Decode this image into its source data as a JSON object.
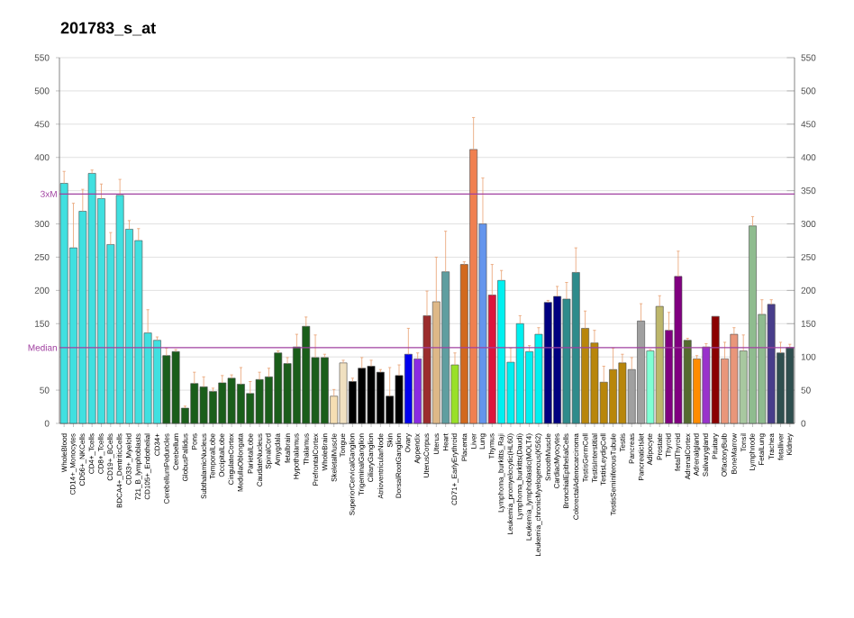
{
  "chart_data": {
    "type": "bar",
    "title": "201783_s_at",
    "categories": [
      "WholeBlood",
      "CD14+_Monocytes",
      "CD56+_NKCells",
      "CD4+_Tcells",
      "CD8+_Tcells",
      "CD19+_BCells",
      "BDCA4+_DentriticCells",
      "CD33+_Myeloid",
      "721_B_lymphoblasts",
      "CD105+_Endothelial",
      "CD34+",
      "CerebellumPeduncles",
      "Cerebellum",
      "GlobusPallidus",
      "Pons",
      "SubthalamicNucleus",
      "TemporalLobe",
      "OccipitalLobe",
      "CingulateCortex",
      "MedullaOblongata",
      "ParietalLobe",
      "CaudateNucleus",
      "SpinalCord",
      "Amygdala",
      "fetalbrain",
      "Hypothalamus",
      "Thalamus",
      "PrefrontalCortex",
      "WholeBrain",
      "SkeletalMuscle",
      "Tongue",
      "SuperiorCervicalGanglion",
      "TrigeminalGanglion",
      "CiliaryGanglion",
      "AtrioventricularNode",
      "Skin",
      "DorsalRootGanglion",
      "Ovary",
      "Appendix",
      "UterusCorpus",
      "Uterus",
      "Heart",
      "CD71+_EarlyErythroid",
      "Placenta",
      "Liver",
      "Lung",
      "Thymus",
      "Lymphoma_burkitts_Raji",
      "Leukemia_promyelocytic(HL60)",
      "Lymphoma_burkitts(Daudi)",
      "Leukemia_lymphoblastic(MOLT4)",
      "Leukemia_chronicMyelogenous(K562)",
      "SmoothMuscle",
      "CardiacMyocytes",
      "BronchialEpithelialCells",
      "ColorectalAdenocarcinoma",
      "TestisGermCell",
      "TestisInterstitial",
      "TestisLeydigCell",
      "TestisSeminiferousTubule",
      "Testis",
      "Pancreas",
      "PancreaticIslet",
      "Adipocyte",
      "Prostate",
      "Thyroid",
      "fetalThyroid",
      "AdrenalCortex",
      "Adrenalgland",
      "Salivarygland",
      "Pituitary",
      "OlfactoryBulb",
      "BoneMarrow",
      "Tonsil",
      "Lymphnode",
      "FetalLung",
      "Trachea",
      "fetalliver",
      "Kidney"
    ],
    "values": [
      361,
      264,
      319,
      376,
      338,
      269,
      343,
      292,
      275,
      136,
      125,
      102,
      108,
      23,
      60,
      55,
      48,
      61,
      68,
      59,
      45,
      66,
      70,
      106,
      90,
      115,
      146,
      99,
      99,
      41,
      91,
      63,
      83,
      86,
      77,
      41,
      72,
      104,
      97,
      162,
      183,
      228,
      88,
      239,
      412,
      300,
      193,
      215,
      92,
      150,
      108,
      134,
      182,
      191,
      187,
      227,
      143,
      121,
      62,
      81,
      91,
      81,
      154,
      109,
      176,
      140,
      221,
      125,
      97,
      115,
      161,
      97,
      134,
      109,
      297,
      164,
      179,
      106,
      114
    ],
    "errors": [
      18,
      67,
      33,
      5,
      22,
      18,
      24,
      13,
      18,
      35,
      5,
      11,
      3,
      3,
      17,
      15,
      5,
      11,
      5,
      25,
      18,
      11,
      13,
      3,
      9,
      19,
      14,
      34,
      5,
      10,
      4,
      5,
      16,
      9,
      4,
      43,
      16,
      39,
      9,
      37,
      67,
      61,
      18,
      4,
      48,
      69,
      46,
      15,
      21,
      12,
      9,
      10,
      3,
      15,
      25,
      37,
      26,
      19,
      24,
      32,
      13,
      18,
      26,
      2,
      16,
      27,
      38,
      3,
      5,
      5,
      null,
      25,
      10,
      24,
      14,
      22,
      7,
      16,
      5
    ],
    "colors": [
      "#40e0e0",
      "#40e0e0",
      "#40e0e0",
      "#40e0e0",
      "#40e0e0",
      "#40e0e0",
      "#40e0e0",
      "#40e0e0",
      "#40e0e0",
      "#40e0e0",
      "#40e0e0",
      "#1a5e1a",
      "#1a5e1a",
      "#1a5e1a",
      "#1a5e1a",
      "#1a5e1a",
      "#1a5e1a",
      "#1a5e1a",
      "#1a5e1a",
      "#1a5e1a",
      "#1a5e1a",
      "#1a5e1a",
      "#1a5e1a",
      "#1a5e1a",
      "#1a5e1a",
      "#1a5e1a",
      "#1a5e1a",
      "#1a5e1a",
      "#1a5e1a",
      "#f5deb3",
      "#f0e0c0",
      "#000000",
      "#000000",
      "#000000",
      "#000000",
      "#000000",
      "#000000",
      "#0000ee",
      "#8a2be2",
      "#9b2c2c",
      "#deb887",
      "#5f9ea0",
      "#99e028",
      "#d2691e",
      "#f08050",
      "#6495ed",
      "#dc143c",
      "#00f0f0",
      "#00f0f0",
      "#00f0f0",
      "#00f0f0",
      "#00f0f0",
      "#000080",
      "#000080",
      "#2e8b8b",
      "#2e8b8b",
      "#b8860b",
      "#b8860b",
      "#b8860b",
      "#b8860b",
      "#b8860b",
      "#a0a0a0",
      "#a0a0a0",
      "#7fffd4",
      "#bdb76b",
      "#800080",
      "#800080",
      "#556b2f",
      "#ff8c00",
      "#9932cc",
      "#8b0000",
      "#e9967a",
      "#e9967a",
      "#a8c8a0",
      "#8fbc8f",
      "#8fbc8f",
      "#483d8b",
      "#2f4f4f",
      "#2f4f4f"
    ],
    "ylim": [
      0,
      550
    ],
    "yticks": [
      0,
      50,
      150,
      200,
      250,
      300,
      400,
      450,
      500,
      550
    ],
    "y2lim": [
      0,
      550
    ],
    "y2ticks": [
      0,
      50,
      100,
      150,
      200,
      250,
      300,
      350,
      400,
      450,
      500,
      550
    ],
    "grid": "y",
    "ref_lines": [
      {
        "axis": "y",
        "value": 345,
        "label": "3xM",
        "color": "#a040a0"
      },
      {
        "axis": "y",
        "value": 114,
        "label": "Median",
        "color": "#a040a0"
      }
    ]
  }
}
